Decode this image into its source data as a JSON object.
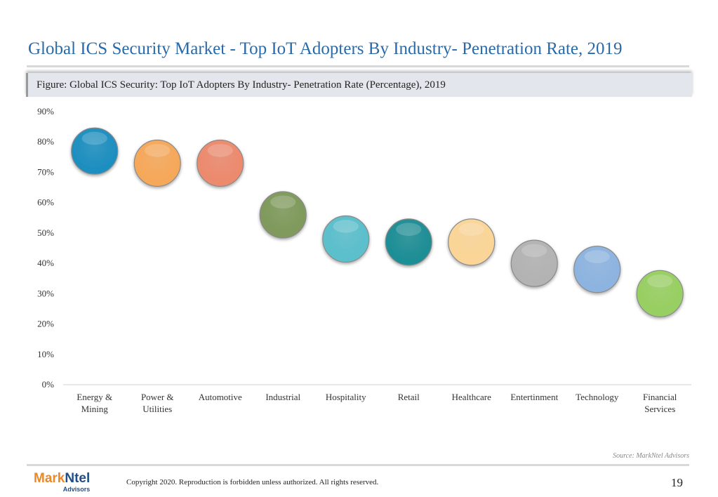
{
  "header": {
    "title": "Global ICS Security Market - Top IoT Adopters By Industry- Penetration Rate, 2019",
    "figure_label": "Figure: Global ICS Security: Top IoT Adopters By Industry- Penetration Rate (Percentage), 2019"
  },
  "chart_data": {
    "type": "scatter",
    "categories": [
      [
        "Energy &",
        "Mining"
      ],
      [
        "Power &",
        "Utilities"
      ],
      [
        "Automotive"
      ],
      [
        "Industrial"
      ],
      [
        "Hospitality"
      ],
      [
        "Retail"
      ],
      [
        "Healthcare"
      ],
      [
        "Entertinment"
      ],
      [
        "Technology"
      ],
      [
        "Financial",
        "Services"
      ]
    ],
    "values": [
      77,
      73,
      73,
      56,
      48,
      47,
      47,
      40,
      38,
      30
    ],
    "colors": [
      "#1f8fc0",
      "#f6a85a",
      "#ec8a6e",
      "#7f9a5c",
      "#5bbfcc",
      "#1f8e95",
      "#fbd597",
      "#b3b3b3",
      "#8db4e0",
      "#98cf62"
    ],
    "ylim": [
      0,
      90
    ],
    "yticks": [
      "0%",
      "10%",
      "20%",
      "30%",
      "40%",
      "50%",
      "60%",
      "70%",
      "80%",
      "90%"
    ],
    "grid": false
  },
  "footer": {
    "source": "Source: MarkNtel Advisors",
    "logo_mark": "Mark",
    "logo_ntel": "Ntel",
    "logo_sub": "Advisors",
    "copyright": "Copyright 2020. Reproduction is forbidden unless authorized. All rights reserved.",
    "page_number": "19"
  }
}
